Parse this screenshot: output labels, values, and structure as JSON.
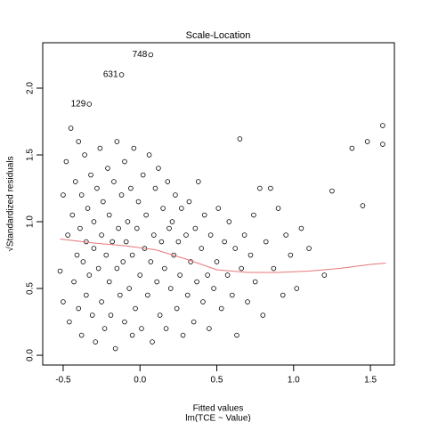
{
  "chart_data": {
    "type": "scatter",
    "title": "Scale-Location",
    "x_label": "Fitted values",
    "x_sublabel": "lm(TCE ~ Value)",
    "y_label": "√Standardized residuals",
    "point_color": "#000000",
    "x": [
      -0.52,
      -0.5,
      -0.5,
      -0.48,
      -0.47,
      -0.46,
      -0.45,
      -0.44,
      -0.43,
      -0.42,
      -0.41,
      -0.4,
      -0.4,
      -0.39,
      -0.38,
      -0.38,
      -0.37,
      -0.36,
      -0.35,
      -0.35,
      -0.34,
      -0.33,
      -0.33,
      -0.32,
      -0.31,
      -0.3,
      -0.3,
      -0.29,
      -0.28,
      -0.27,
      -0.26,
      -0.25,
      -0.25,
      -0.24,
      -0.23,
      -0.22,
      -0.21,
      -0.2,
      -0.2,
      -0.19,
      -0.18,
      -0.17,
      -0.16,
      -0.15,
      -0.15,
      -0.14,
      -0.13,
      -0.12,
      -0.12,
      -0.11,
      -0.1,
      -0.1,
      -0.09,
      -0.08,
      -0.07,
      -0.06,
      -0.05,
      -0.05,
      -0.04,
      -0.03,
      -0.02,
      -0.01,
      0.0,
      0.01,
      0.02,
      0.03,
      0.04,
      0.05,
      0.06,
      0.07,
      0.07,
      0.08,
      0.09,
      0.1,
      0.11,
      0.12,
      0.13,
      0.14,
      0.15,
      0.16,
      0.17,
      0.18,
      0.19,
      0.2,
      0.21,
      0.22,
      0.23,
      0.24,
      0.25,
      0.26,
      0.27,
      0.28,
      0.3,
      0.31,
      0.32,
      0.33,
      0.35,
      0.36,
      0.37,
      0.38,
      0.4,
      0.41,
      0.42,
      0.44,
      0.45,
      0.46,
      0.48,
      0.5,
      0.51,
      0.53,
      0.55,
      0.57,
      0.58,
      0.6,
      0.62,
      0.63,
      0.65,
      0.66,
      0.68,
      0.7,
      0.72,
      0.74,
      0.75,
      0.78,
      0.8,
      0.82,
      0.85,
      0.87,
      0.9,
      0.93,
      0.95,
      0.98,
      1.02,
      1.05,
      1.1,
      1.2,
      1.25,
      1.38,
      1.45,
      1.48,
      1.58,
      1.58
    ],
    "values": [
      0.63,
      1.2,
      0.4,
      1.45,
      0.9,
      0.25,
      1.7,
      1.05,
      0.55,
      1.3,
      0.75,
      0.35,
      1.6,
      0.95,
      0.15,
      1.2,
      0.7,
      1.5,
      0.45,
      0.85,
      1.1,
      1.88,
      0.6,
      1.35,
      0.3,
      0.8,
      1.0,
      0.1,
      1.25,
      0.65,
      1.55,
      0.4,
      0.9,
      1.15,
      0.2,
      0.75,
      1.4,
      0.55,
      1.05,
      0.3,
      0.85,
      1.3,
      0.05,
      0.65,
      1.6,
      0.95,
      0.45,
      2.1,
      1.2,
      0.7,
      0.25,
      1.45,
      0.85,
      1.0,
      0.5,
      1.25,
      0.15,
      0.75,
      1.55,
      0.35,
      0.95,
      1.15,
      0.6,
      0.2,
      1.35,
      0.8,
      1.05,
      0.45,
      1.5,
      2.25,
      0.7,
      0.1,
      0.9,
      1.25,
      0.55,
      1.4,
      0.3,
      0.85,
      1.1,
      0.65,
      0.2,
      1.3,
      0.95,
      0.5,
      1.0,
      0.75,
      1.2,
      0.35,
      0.85,
      0.6,
      1.1,
      0.15,
      0.9,
      0.45,
      1.15,
      0.7,
      0.25,
      0.95,
      0.55,
      1.3,
      0.8,
      0.4,
      1.05,
      0.6,
      0.2,
      0.9,
      0.5,
      0.7,
      1.1,
      0.35,
      0.85,
      0.6,
      1.0,
      0.45,
      0.8,
      0.15,
      1.62,
      0.65,
      0.9,
      0.4,
      0.75,
      1.05,
      0.55,
      1.25,
      0.3,
      0.85,
      1.25,
      0.65,
      1.1,
      0.45,
      0.9,
      0.75,
      0.5,
      0.95,
      0.8,
      0.6,
      1.23,
      1.55,
      1.12,
      1.6,
      1.58,
      1.72
    ],
    "smooth": {
      "color": "#e8767a",
      "x": [
        -0.52,
        -0.3,
        -0.1,
        0.1,
        0.3,
        0.5,
        0.7,
        0.9,
        1.1,
        1.3,
        1.5,
        1.6
      ],
      "values": [
        0.87,
        0.84,
        0.82,
        0.79,
        0.72,
        0.64,
        0.62,
        0.62,
        0.63,
        0.65,
        0.68,
        0.69
      ]
    },
    "annotations": [
      {
        "text": "748",
        "x": 0.07,
        "y": 2.25
      },
      {
        "text": "631",
        "x": -0.12,
        "y": 2.1
      },
      {
        "text": "129",
        "x": -0.33,
        "y": 1.88
      }
    ],
    "xlim": [
      -0.633,
      1.656
    ],
    "ylim": [
      -0.073,
      2.34
    ],
    "xticks": [
      -0.5,
      {
        "value": 0,
        "label": "0.0"
      },
      0.5,
      {
        "value": 1,
        "label": "1.0"
      },
      1.5
    ],
    "yticks": [
      {
        "value": 0,
        "label": "0.0"
      },
      0.5,
      {
        "value": 1,
        "label": "1.0"
      },
      1.5,
      {
        "value": 2,
        "label": "2.0"
      }
    ]
  }
}
